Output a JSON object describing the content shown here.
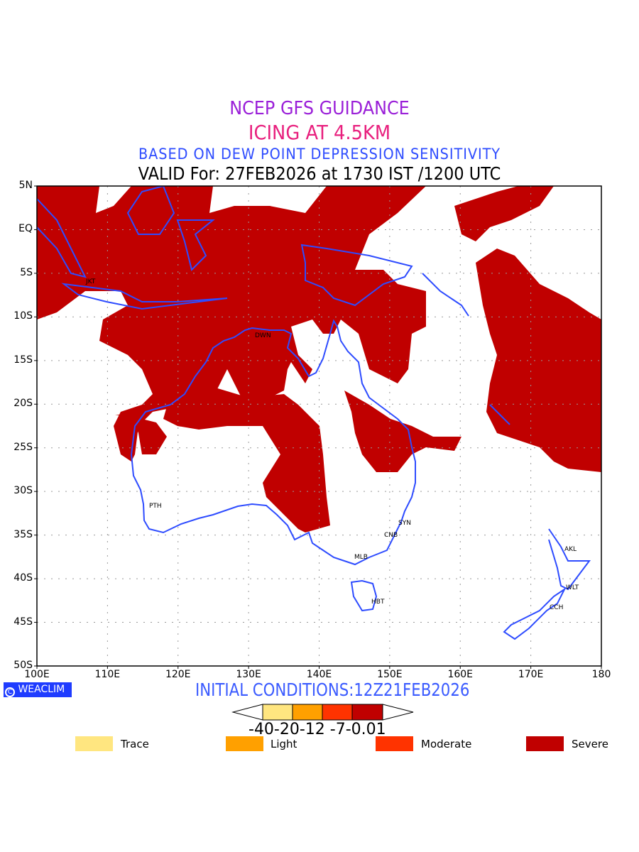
{
  "title": {
    "line1": "NCEP GFS GUIDANCE",
    "line2": "ICING AT 4.5KM",
    "line3": "BASED ON DEW POINT DEPRESSION SENSITIVITY",
    "line4": "VALID For: 27FEB2026 at 1730 IST /1200 UTC"
  },
  "map": {
    "lat_labels": [
      "5N",
      "EQ",
      "5S",
      "10S",
      "15S",
      "20S",
      "25S",
      "30S",
      "35S",
      "40S",
      "45S",
      "50S"
    ],
    "lon_labels": [
      "100E",
      "110E",
      "120E",
      "130E",
      "140E",
      "150E",
      "160E",
      "170E",
      "180"
    ],
    "cities": [
      "JKT",
      "DWN",
      "PTH",
      "SYN",
      "CNB",
      "MLB",
      "HBT",
      "AKL",
      "WLT",
      "CCH"
    ],
    "colors": {
      "severe": "#c00000",
      "coast": "#2e4cff",
      "grid": "#999999"
    }
  },
  "footer": {
    "logo": "WEACLIM",
    "initial_conditions": "INITIAL CONDITIONS:12Z21FEB2026"
  },
  "colorbar": {
    "levels_label": "-40-20-12 -7-0.01",
    "colors": [
      "#ffe680",
      "#ffa000",
      "#ff3300",
      "#c00000"
    ]
  },
  "legend": [
    {
      "label": "Trace",
      "color": "#ffe680"
    },
    {
      "label": "Light",
      "color": "#ffa000"
    },
    {
      "label": "Moderate",
      "color": "#ff3300"
    },
    {
      "label": "Severe",
      "color": "#c00000"
    }
  ]
}
